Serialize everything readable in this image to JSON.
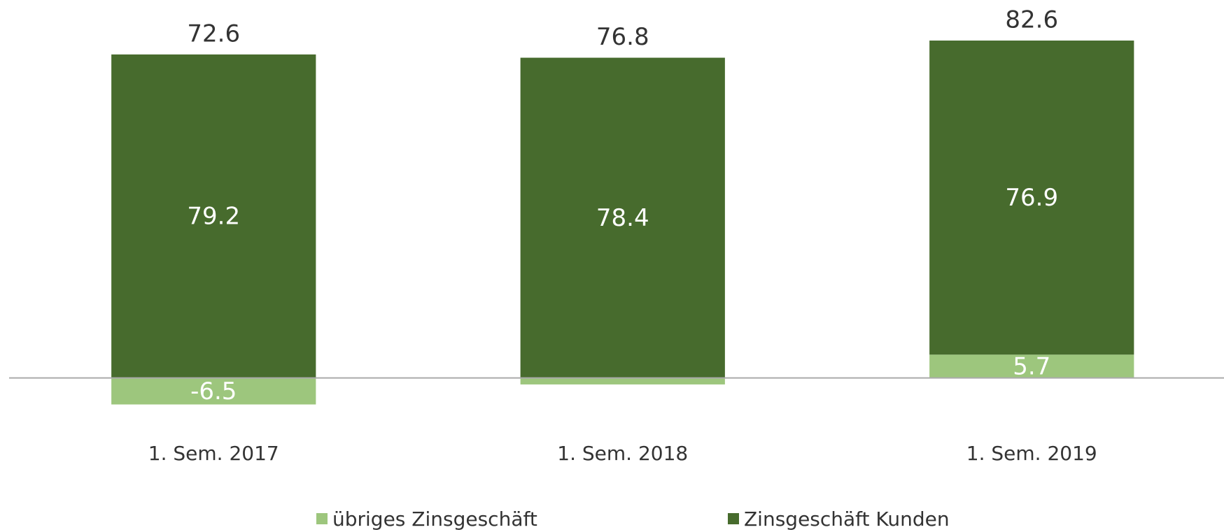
{
  "chart_data": {
    "type": "stacked-bar",
    "categories": [
      "1. Sem. 2017",
      "1. Sem. 2018",
      "1. Sem. 2019"
    ],
    "series": [
      {
        "name": "übriges Zinsgeschäft",
        "color": "#9dc67d",
        "values": [
          -6.5,
          -1.6,
          5.7
        ]
      },
      {
        "name": "Zinsgeschäft Kunden",
        "color": "#476b2d",
        "values": [
          79.2,
          78.4,
          76.9
        ]
      }
    ],
    "totals": [
      72.6,
      76.8,
      82.6
    ],
    "ylim": [
      -10,
      85
    ]
  }
}
